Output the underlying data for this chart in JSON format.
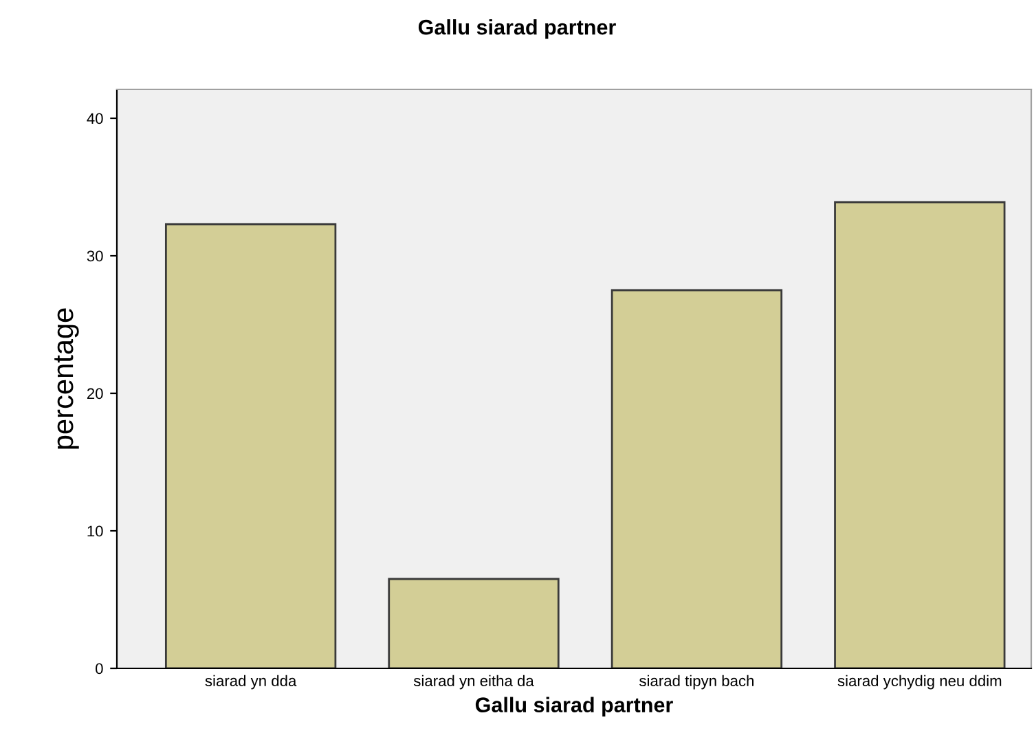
{
  "chart_data": {
    "type": "bar",
    "title": "Gallu siarad partner",
    "xlabel": "Gallu siarad partner",
    "ylabel": "percentage",
    "categories": [
      "siarad yn dda",
      "siarad yn eitha da",
      "siarad tipyn bach",
      "siarad ychydig neu ddim"
    ],
    "values": [
      32.3,
      6.5,
      27.5,
      33.9
    ],
    "color": "#d3ce96",
    "ylim": [
      0,
      42.1
    ],
    "yticks": [
      0,
      10,
      20,
      30,
      40
    ],
    "grid": false
  }
}
